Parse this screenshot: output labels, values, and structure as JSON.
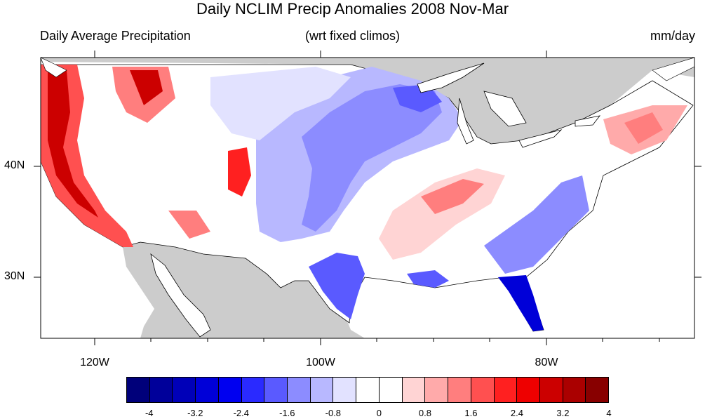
{
  "title": "Daily NCLIM Precip Anomalies 2008 Nov-Mar",
  "subtitle_left": "Daily Average Precipitation",
  "subtitle_center": "(wrt fixed climos)",
  "subtitle_right": "mm/day",
  "lat_labels": [
    "40N",
    "30N"
  ],
  "lon_labels": [
    "120W",
    "100W",
    "80W"
  ],
  "colorbar": {
    "colors": [
      "#00007a",
      "#00009a",
      "#0000b8",
      "#0000d8",
      "#0000f0",
      "#2a2aff",
      "#5a5aff",
      "#8c8cff",
      "#b8b8ff",
      "#e2e2ff",
      "#ffffff",
      "#ffffff",
      "#ffd4d4",
      "#ffaaaa",
      "#ff7e7e",
      "#ff5050",
      "#ff2020",
      "#ee0000",
      "#cc0000",
      "#aa0000",
      "#880000"
    ],
    "labels": [
      "-4",
      "-3.2",
      "-2.4",
      "-1.6",
      "-0.8",
      "0",
      "0.8",
      "1.6",
      "2.4",
      "3.2",
      "4"
    ]
  },
  "colors": {
    "land_outside": "#cccccc",
    "water": "#ffffff"
  }
}
